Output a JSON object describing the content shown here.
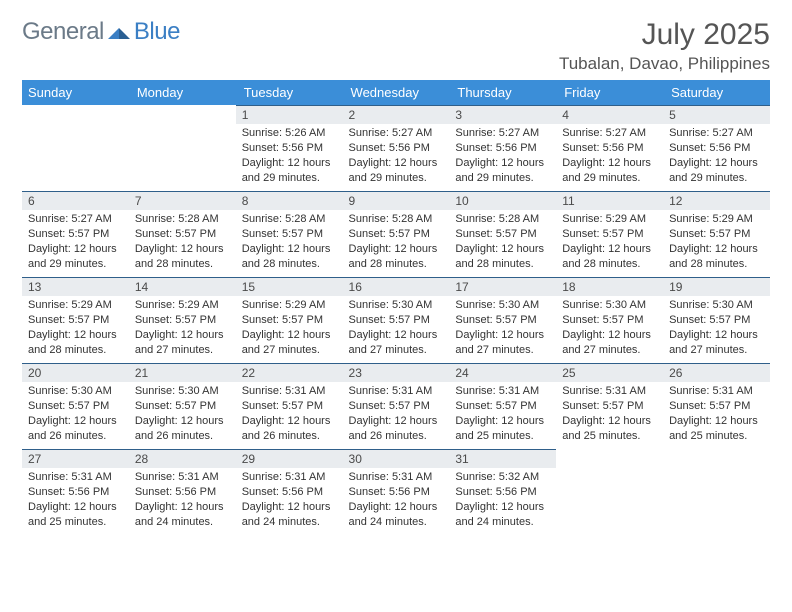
{
  "brand": {
    "name1": "General",
    "name2": "Blue"
  },
  "title": "July 2025",
  "location": "Tubalan, Davao, Philippines",
  "colors": {
    "header_bg": "#3b8ed8",
    "header_fg": "#ffffff",
    "daynum_bg": "#e9ecef",
    "rule": "#2f5f8a",
    "body_text": "#333333",
    "title_text": "#555555",
    "logo_gray": "#6b7a88",
    "logo_blue": "#3b7fc4"
  },
  "weekdays": [
    "Sunday",
    "Monday",
    "Tuesday",
    "Wednesday",
    "Thursday",
    "Friday",
    "Saturday"
  ],
  "weeks": [
    [
      {
        "empty": true
      },
      {
        "empty": true
      },
      {
        "n": "1",
        "sunrise": "5:26 AM",
        "sunset": "5:56 PM",
        "daylight": "12 hours and 29 minutes."
      },
      {
        "n": "2",
        "sunrise": "5:27 AM",
        "sunset": "5:56 PM",
        "daylight": "12 hours and 29 minutes."
      },
      {
        "n": "3",
        "sunrise": "5:27 AM",
        "sunset": "5:56 PM",
        "daylight": "12 hours and 29 minutes."
      },
      {
        "n": "4",
        "sunrise": "5:27 AM",
        "sunset": "5:56 PM",
        "daylight": "12 hours and 29 minutes."
      },
      {
        "n": "5",
        "sunrise": "5:27 AM",
        "sunset": "5:56 PM",
        "daylight": "12 hours and 29 minutes."
      }
    ],
    [
      {
        "n": "6",
        "sunrise": "5:27 AM",
        "sunset": "5:57 PM",
        "daylight": "12 hours and 29 minutes."
      },
      {
        "n": "7",
        "sunrise": "5:28 AM",
        "sunset": "5:57 PM",
        "daylight": "12 hours and 28 minutes."
      },
      {
        "n": "8",
        "sunrise": "5:28 AM",
        "sunset": "5:57 PM",
        "daylight": "12 hours and 28 minutes."
      },
      {
        "n": "9",
        "sunrise": "5:28 AM",
        "sunset": "5:57 PM",
        "daylight": "12 hours and 28 minutes."
      },
      {
        "n": "10",
        "sunrise": "5:28 AM",
        "sunset": "5:57 PM",
        "daylight": "12 hours and 28 minutes."
      },
      {
        "n": "11",
        "sunrise": "5:29 AM",
        "sunset": "5:57 PM",
        "daylight": "12 hours and 28 minutes."
      },
      {
        "n": "12",
        "sunrise": "5:29 AM",
        "sunset": "5:57 PM",
        "daylight": "12 hours and 28 minutes."
      }
    ],
    [
      {
        "n": "13",
        "sunrise": "5:29 AM",
        "sunset": "5:57 PM",
        "daylight": "12 hours and 28 minutes."
      },
      {
        "n": "14",
        "sunrise": "5:29 AM",
        "sunset": "5:57 PM",
        "daylight": "12 hours and 27 minutes."
      },
      {
        "n": "15",
        "sunrise": "5:29 AM",
        "sunset": "5:57 PM",
        "daylight": "12 hours and 27 minutes."
      },
      {
        "n": "16",
        "sunrise": "5:30 AM",
        "sunset": "5:57 PM",
        "daylight": "12 hours and 27 minutes."
      },
      {
        "n": "17",
        "sunrise": "5:30 AM",
        "sunset": "5:57 PM",
        "daylight": "12 hours and 27 minutes."
      },
      {
        "n": "18",
        "sunrise": "5:30 AM",
        "sunset": "5:57 PM",
        "daylight": "12 hours and 27 minutes."
      },
      {
        "n": "19",
        "sunrise": "5:30 AM",
        "sunset": "5:57 PM",
        "daylight": "12 hours and 27 minutes."
      }
    ],
    [
      {
        "n": "20",
        "sunrise": "5:30 AM",
        "sunset": "5:57 PM",
        "daylight": "12 hours and 26 minutes."
      },
      {
        "n": "21",
        "sunrise": "5:30 AM",
        "sunset": "5:57 PM",
        "daylight": "12 hours and 26 minutes."
      },
      {
        "n": "22",
        "sunrise": "5:31 AM",
        "sunset": "5:57 PM",
        "daylight": "12 hours and 26 minutes."
      },
      {
        "n": "23",
        "sunrise": "5:31 AM",
        "sunset": "5:57 PM",
        "daylight": "12 hours and 26 minutes."
      },
      {
        "n": "24",
        "sunrise": "5:31 AM",
        "sunset": "5:57 PM",
        "daylight": "12 hours and 25 minutes."
      },
      {
        "n": "25",
        "sunrise": "5:31 AM",
        "sunset": "5:57 PM",
        "daylight": "12 hours and 25 minutes."
      },
      {
        "n": "26",
        "sunrise": "5:31 AM",
        "sunset": "5:57 PM",
        "daylight": "12 hours and 25 minutes."
      }
    ],
    [
      {
        "n": "27",
        "sunrise": "5:31 AM",
        "sunset": "5:56 PM",
        "daylight": "12 hours and 25 minutes."
      },
      {
        "n": "28",
        "sunrise": "5:31 AM",
        "sunset": "5:56 PM",
        "daylight": "12 hours and 24 minutes."
      },
      {
        "n": "29",
        "sunrise": "5:31 AM",
        "sunset": "5:56 PM",
        "daylight": "12 hours and 24 minutes."
      },
      {
        "n": "30",
        "sunrise": "5:31 AM",
        "sunset": "5:56 PM",
        "daylight": "12 hours and 24 minutes."
      },
      {
        "n": "31",
        "sunrise": "5:32 AM",
        "sunset": "5:56 PM",
        "daylight": "12 hours and 24 minutes."
      },
      {
        "empty": true
      },
      {
        "empty": true
      }
    ]
  ],
  "labels": {
    "sunrise": "Sunrise:",
    "sunset": "Sunset:",
    "daylight": "Daylight:"
  }
}
